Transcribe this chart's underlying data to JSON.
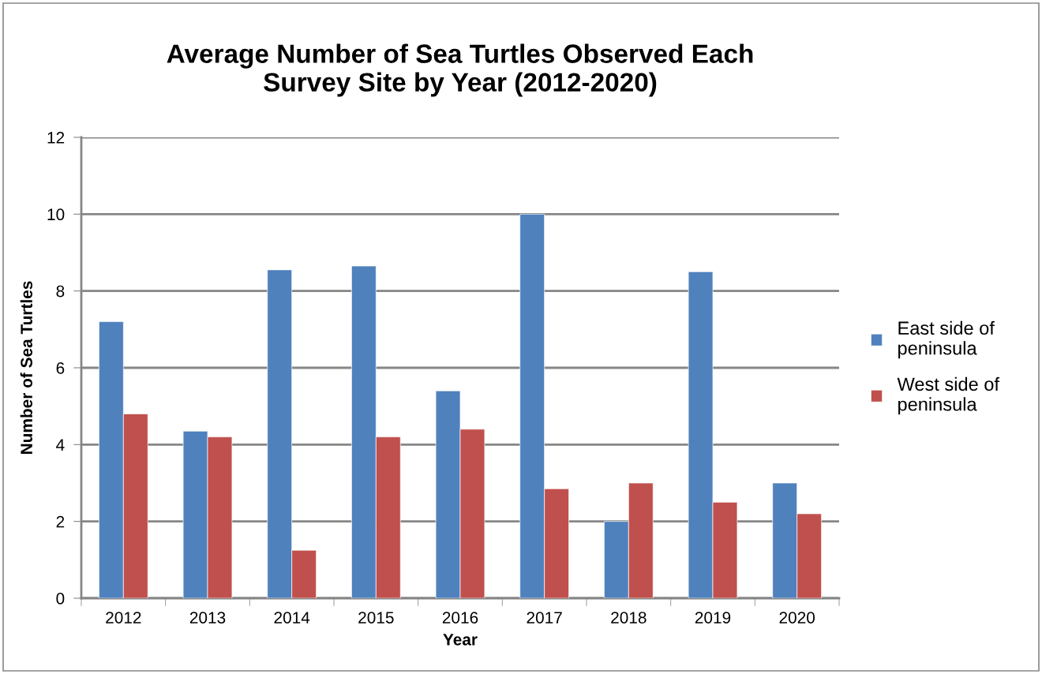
{
  "chart_data": {
    "type": "bar",
    "title": "Average Number of Sea Turtles Observed Each\nSurvey Site by Year (2012-2020)",
    "xlabel": "Year",
    "ylabel": "Number of Sea Turtles",
    "categories": [
      "2012",
      "2013",
      "2014",
      "2015",
      "2016",
      "2017",
      "2018",
      "2019",
      "2020"
    ],
    "series": [
      {
        "name": "East side of\npeninsula",
        "color": "#4f81bd",
        "values": [
          7.2,
          4.35,
          8.55,
          8.65,
          5.4,
          10,
          2,
          8.5,
          3
        ]
      },
      {
        "name": "West side of\npeninsula",
        "color": "#c0504d",
        "values": [
          4.8,
          4.2,
          1.25,
          4.2,
          4.4,
          2.85,
          3,
          2.5,
          2.2
        ]
      }
    ],
    "ylim": [
      0,
      12
    ],
    "yticks": [
      0,
      2,
      4,
      6,
      8,
      10,
      12
    ],
    "grid": "y",
    "legend": "right"
  }
}
